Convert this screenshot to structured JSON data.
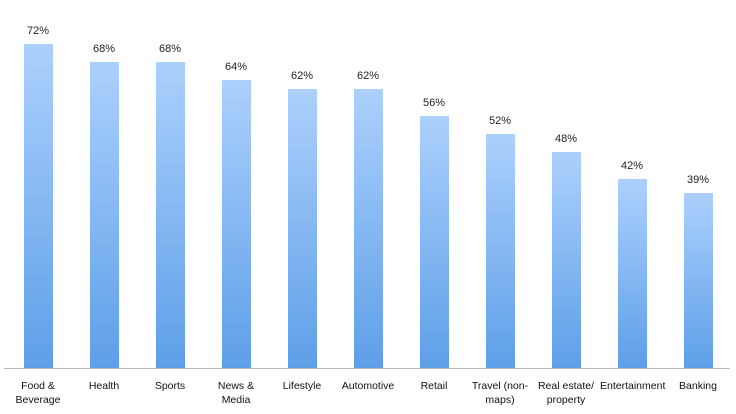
{
  "chart_data": {
    "type": "bar",
    "categories": [
      "Food & Beverage",
      "Health",
      "Sports",
      "News & Media",
      "Lifestyle",
      "Automotive",
      "Retail",
      "Travel (non-maps)",
      "Real estate/ property",
      "Entertainment",
      "Banking"
    ],
    "values": [
      72,
      68,
      68,
      64,
      62,
      62,
      56,
      52,
      48,
      42,
      39
    ],
    "value_labels": [
      "72%",
      "68%",
      "68%",
      "64%",
      "62%",
      "62%",
      "56%",
      "52%",
      "48%",
      "42%",
      "39%"
    ],
    "color": "#5e9fe8"
  }
}
